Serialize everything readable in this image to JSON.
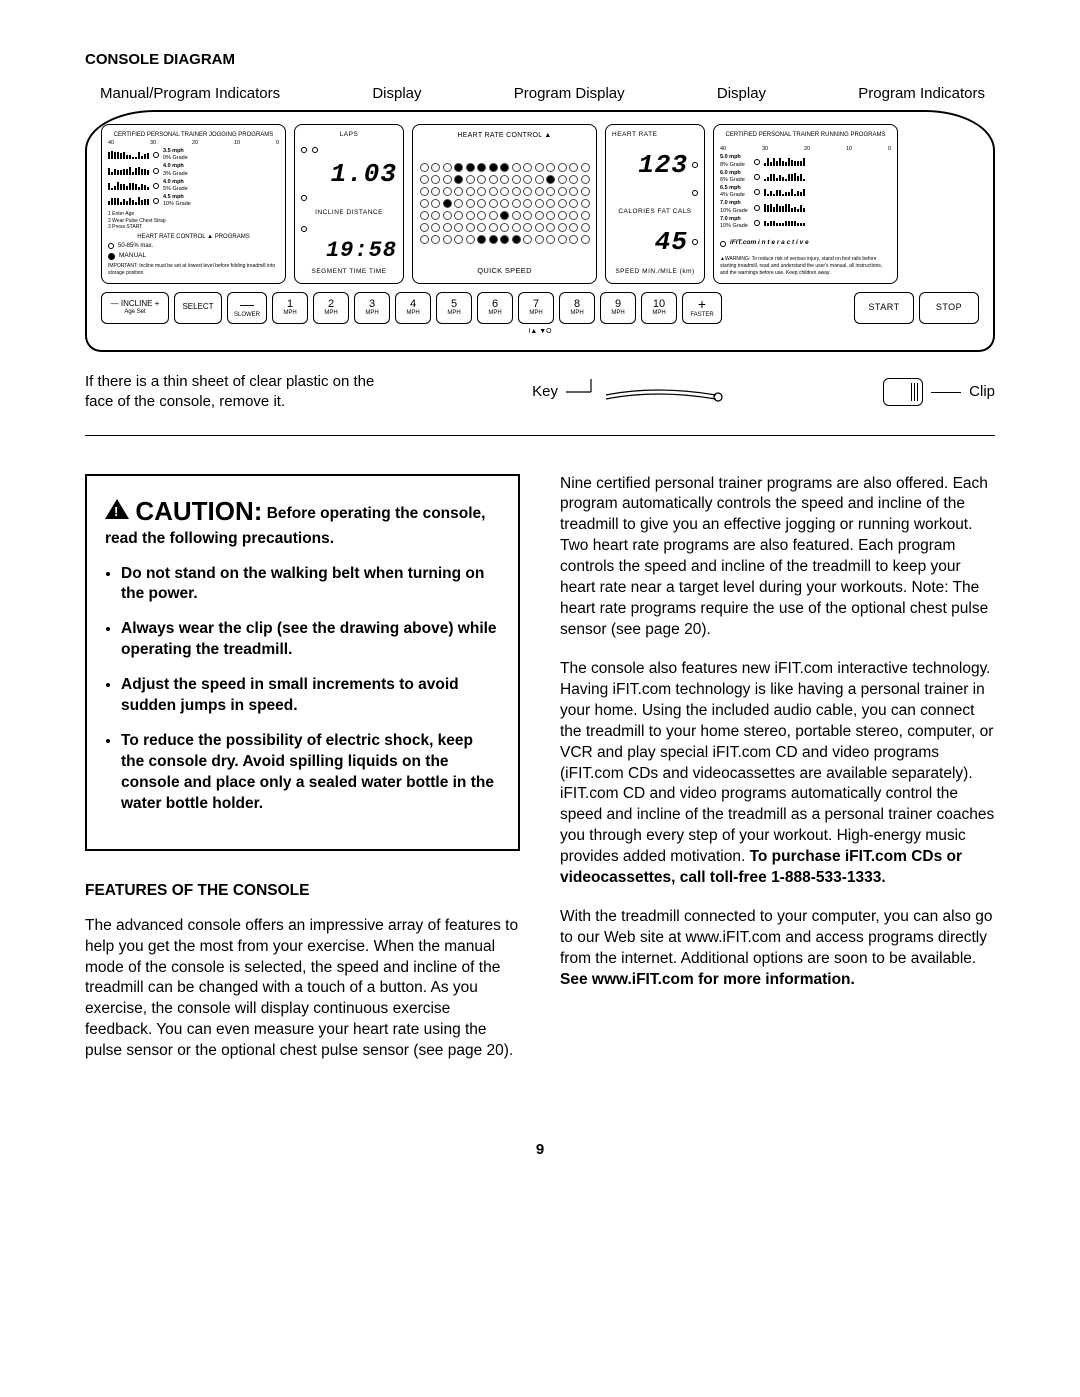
{
  "page": {
    "title": "CONSOLE DIAGRAM",
    "number": "9"
  },
  "topLabels": {
    "a": "Manual/Program Indicators",
    "b": "Display",
    "c": "Program Display",
    "d": "Display",
    "e": "Program Indicators"
  },
  "consoleColors": {
    "border": "#000000",
    "dot_off": "#ffffff",
    "dot_on": "#000000"
  },
  "leftPanel": {
    "header": "CERTIFIED PERSONAL TRAINER JOGGING PROGRAMS",
    "axis": [
      "40",
      "30",
      "20",
      "10",
      "0"
    ],
    "specs": [
      {
        "t": "3.5 mph",
        "g": "0% Grade"
      },
      {
        "t": "4.0 mph",
        "g": "3% Grade"
      },
      {
        "t": "4.0 mph",
        "g": "5% Grade"
      },
      {
        "t": "4.5 mph",
        "g": "10% Grade"
      }
    ],
    "steps": [
      "1  Enter Age",
      "2  Wear Pulse Chest Strap",
      "3  Press START"
    ],
    "hr": "HEART RATE CONTROL ▲ PROGRAMS",
    "pct": "50-85% max.",
    "manual": "MANUAL",
    "important": "IMPORTANT: Incline must be set at lowest level before folding treadmill into storage position."
  },
  "display1": {
    "laps_label": "LAPS",
    "laps": "1.03",
    "mid_label": "INCLINE   DISTANCE",
    "time_label": "SEGMENT TIME     TIME",
    "time": "19:58"
  },
  "programDisplay": {
    "title": "HEART RATE CONTROL ▲",
    "rows": 7,
    "cols": 15,
    "on": [
      [
        0,
        3
      ],
      [
        0,
        4
      ],
      [
        0,
        5
      ],
      [
        0,
        6
      ],
      [
        0,
        7
      ],
      [
        1,
        3
      ],
      [
        1,
        11
      ],
      [
        3,
        2
      ],
      [
        4,
        7
      ],
      [
        6,
        5
      ],
      [
        6,
        6
      ],
      [
        6,
        7
      ],
      [
        6,
        8
      ]
    ],
    "footer": "QUICK SPEED"
  },
  "display2": {
    "hr_label": "HEART RATE",
    "hr": "123",
    "mid_label": "CALORIES   FAT CALS",
    "cals": "45",
    "speed_label": "SPEED    MIN./MILE (km)"
  },
  "rightPanel": {
    "header": "CERTIFIED PERSONAL TRAINER RUNNING PROGRAMS",
    "axis": [
      "40",
      "30",
      "20",
      "10",
      "0"
    ],
    "specs": [
      {
        "t": "5.0 mph",
        "g": "8% Grade"
      },
      {
        "t": "6.0 mph",
        "g": "6% Grade"
      },
      {
        "t": "6.5 mph",
        "g": "4% Grade"
      },
      {
        "t": "7.0 mph",
        "g": "10% Grade"
      },
      {
        "t": "7.0 mph",
        "g": "10% Grade"
      }
    ],
    "ifit": "iFIT.com  i n t e r a c t i v e",
    "warning": "▲WARNING: To reduce risk of serious injury, stand on foot rails before starting treadmill, read and understand the user's manual, all instructions, and the warnings before use. Keep children away."
  },
  "buttons": {
    "incline": "— INCLINE +",
    "select": "SELECT",
    "slower": {
      "sym": "—",
      "sub": "SLOWER"
    },
    "nums": [
      {
        "n": "1",
        "u": "MPH"
      },
      {
        "n": "2",
        "u": "MPH"
      },
      {
        "n": "3",
        "u": "MPH"
      },
      {
        "n": "4",
        "u": "MPH"
      },
      {
        "n": "5",
        "u": "MPH"
      },
      {
        "n": "6",
        "u": "MPH"
      },
      {
        "n": "7",
        "u": "MPH"
      },
      {
        "n": "8",
        "u": "MPH"
      },
      {
        "n": "9",
        "u": "MPH"
      },
      {
        "n": "10",
        "u": "MPH"
      }
    ],
    "faster": {
      "sym": "+",
      "sub": "FASTER"
    },
    "start": "START",
    "stop": "STOP",
    "arrows": "I▲    ▼O"
  },
  "under": {
    "note": "If there is a thin sheet of clear plastic on the face of the console, remove it.",
    "key": "Key",
    "clip": "Clip"
  },
  "caution": {
    "lead": "CAUTION:",
    "after": " Before operating the console, read the following precautions.",
    "items": [
      "Do not stand on the walking belt when turning on the power.",
      "Always wear the clip (see the drawing above) while operating the treadmill.",
      "Adjust the speed in small increments to avoid sudden jumps in speed.",
      "To reduce the possibility of electric shock, keep the console dry. Avoid spilling liquids on the console and place only a sealed water bottle in the water bottle holder."
    ]
  },
  "features": {
    "head": "FEATURES OF THE CONSOLE",
    "p1": "The advanced console offers an impressive array of features to help you get the most from your exercise. When the manual mode of the console is selected, the speed and incline of the treadmill can be changed with a touch of a button. As you exercise, the console will display continuous exercise feedback. You can even measure your heart rate using the pulse sensor or the optional chest pulse sensor (see page 20)."
  },
  "right": {
    "p1": "Nine certified personal trainer programs are also offered. Each program automatically controls the speed and incline of the treadmill to give you an effective jogging or running workout. Two heart rate programs are also featured. Each program controls the speed and incline of the treadmill to keep your heart rate near a target level during your workouts. Note: The heart rate programs require the use of the optional chest pulse sensor (see page 20).",
    "p2a": "The console also features new iFIT.com interactive technology. Having iFIT.com technology is like having a personal trainer in your home. Using the included audio cable, you can connect the treadmill to your home stereo, portable stereo, computer, or VCR and play special iFIT.com CD and video programs (iFIT.com CDs and videocassettes are available separately). iFIT.com CD and video programs automatically control the speed and incline of the treadmill as a personal trainer coaches you through every step of your workout. High-energy music provides added motivation. ",
    "p2b": "To purchase iFIT.com CDs or videocassettes, call toll-free 1-888-533-1333.",
    "p3a": "With the treadmill connected to your computer, you can also go to our Web site at www.iFIT.com and access programs directly from the internet. Additional options are soon to be available. ",
    "p3b": "See www.iFIT.com for more information."
  }
}
